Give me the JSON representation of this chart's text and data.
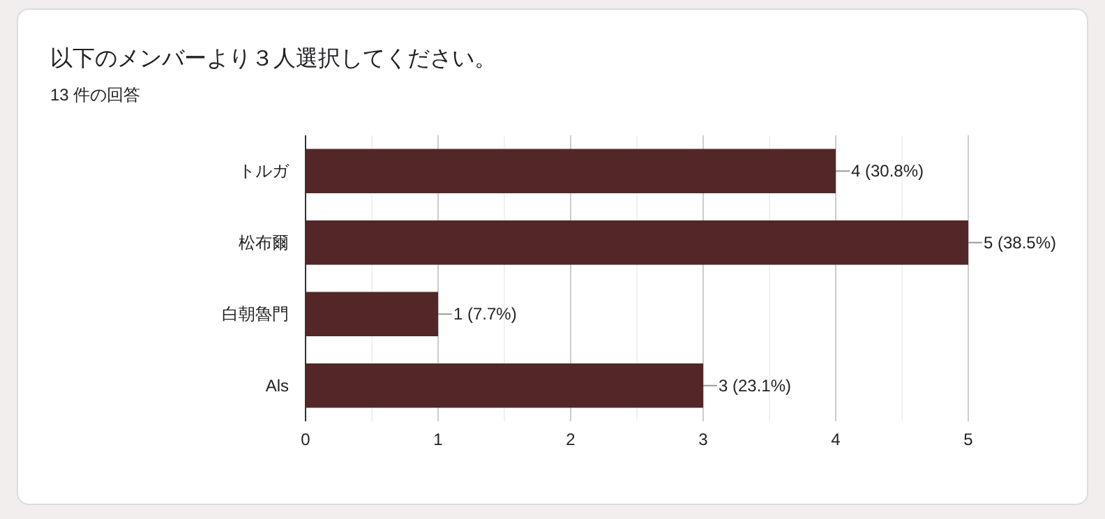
{
  "chart_data": {
    "type": "bar",
    "orientation": "horizontal",
    "title": "以下のメンバーより３人選択してください。",
    "subtitle": "13 件の回答",
    "categories": [
      "トルガ",
      "松布爾",
      "白朝魯門",
      "Als"
    ],
    "values": [
      4,
      5,
      1,
      3
    ],
    "value_labels": [
      "4 (30.8%)",
      "5 (38.5%)",
      "1 (7.7%)",
      "3 (23.1%)"
    ],
    "color": "#532628",
    "xlim": [
      0,
      5
    ],
    "xticks": [
      0,
      {
        "value": 0.5,
        "label": null
      },
      1,
      {
        "value": 1.5,
        "label": null
      },
      2,
      {
        "value": 2.5,
        "label": null
      },
      3,
      {
        "value": 3.5,
        "label": null
      },
      4,
      {
        "value": 4.5,
        "label": null
      },
      5
    ],
    "grid": "x"
  }
}
